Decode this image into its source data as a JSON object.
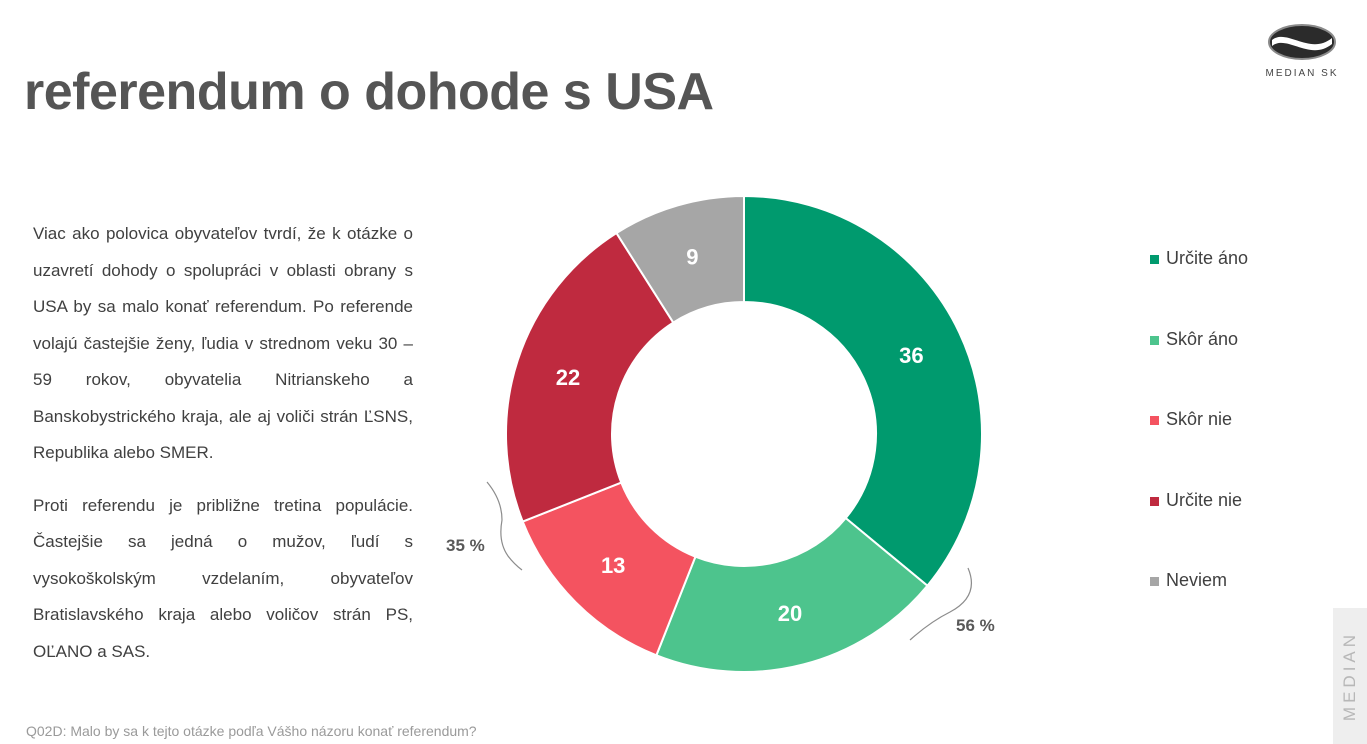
{
  "header": {
    "title": "referendum o dohode s USA",
    "logo_text": "MEDIAN SK"
  },
  "text": {
    "paragraph1": "Viac ako polovica obyvateľov tvrdí, že k otázke o uzavretí dohody o spolupráci v oblasti obrany s USA by sa malo konať referendum. Po referende volajú častejšie ženy, ľudia v strednom veku 30 – 59 rokov, obyvatelia Nitrianskeho a Banskobystrického kraja, ale aj voliči strán ĽSNS, Republika alebo SMER.",
    "paragraph2": "Proti referendu je približne tretina populácie. Častejšie sa jedná o mužov, ľudí s vysokoškolským vzdelaním, obyvateľov Bratislavského kraja alebo voličov strán PS, OĽANO a SAS."
  },
  "chart_data": {
    "type": "pie",
    "donut": true,
    "categories": [
      "Určite áno",
      "Skôr áno",
      "Skôr nie",
      "Určite nie",
      "Neviem"
    ],
    "values": [
      36,
      20,
      13,
      22,
      9
    ],
    "colors": [
      "#009a6e",
      "#4dc48d",
      "#f45360",
      "#bf2a3f",
      "#a6a6a6"
    ],
    "legend_position": "right",
    "annotations": [
      {
        "label": "56 %",
        "groups": [
          "Určite áno",
          "Skôr áno"
        ]
      },
      {
        "label": "35 %",
        "groups": [
          "Skôr nie",
          "Určite nie"
        ]
      }
    ]
  },
  "footer": {
    "question": "Q02D: Malo by sa k tejto otázke podľa Vášho názoru konať referendum?",
    "side_brand": "MEDIAN"
  }
}
